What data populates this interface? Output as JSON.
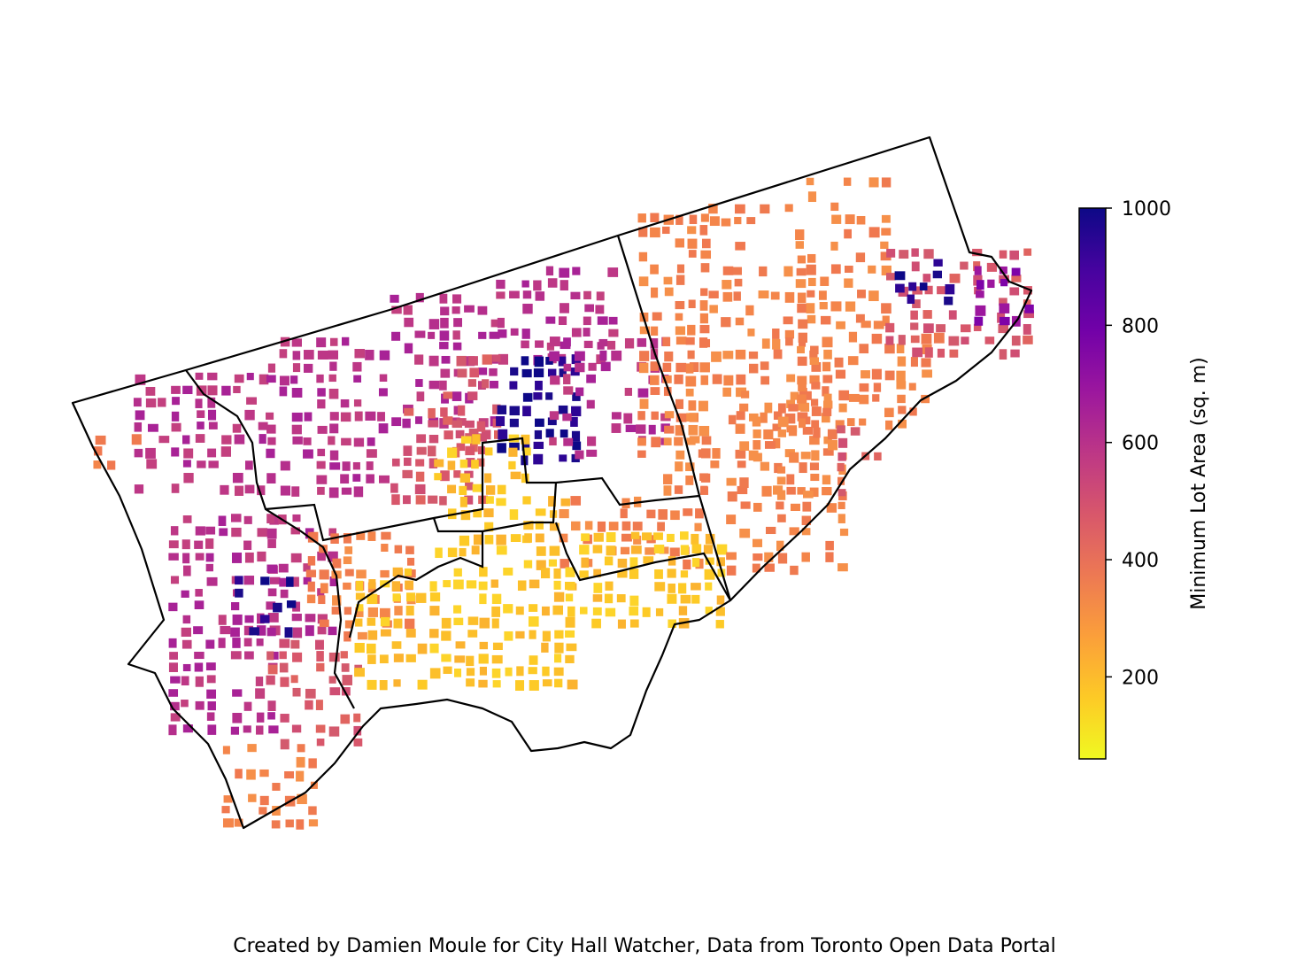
{
  "colorbar": {
    "label": "Minimum Lot Area (sq. m)",
    "min": 60,
    "max": 1000,
    "ticks": [
      {
        "value": 1000,
        "label": "1000"
      },
      {
        "value": 800,
        "label": "800"
      },
      {
        "value": 600,
        "label": "600"
      },
      {
        "value": 400,
        "label": "400"
      },
      {
        "value": 200,
        "label": "200"
      }
    ],
    "colormap": [
      "#f0f921",
      "#fdca26",
      "#fb9f3a",
      "#ed7953",
      "#d8576b",
      "#bd3786",
      "#9c179e",
      "#7201a8",
      "#46039f",
      "#0d0887"
    ]
  },
  "credit": "Created by Damien Moule for City Hall Watcher, Data from Toronto Open Data Portal"
}
